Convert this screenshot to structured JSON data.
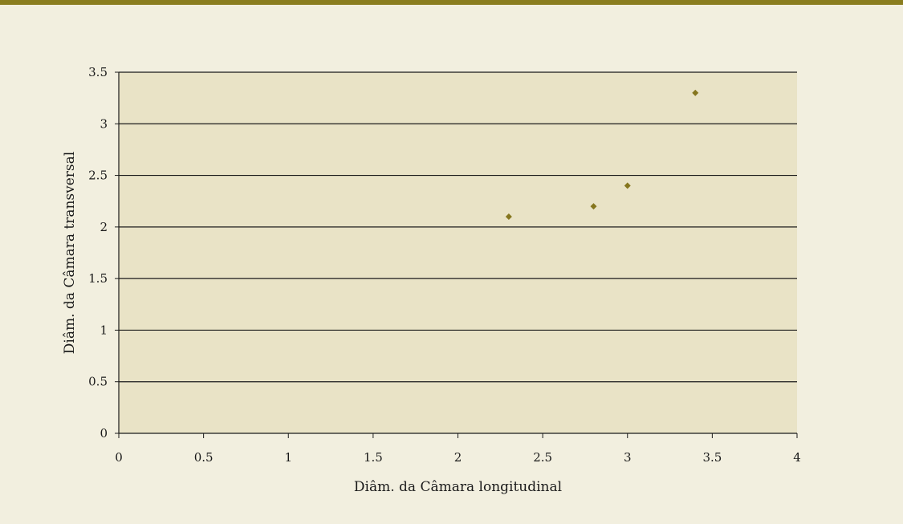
{
  "colors": {
    "outer_background": "#f2efdf",
    "top_rule": "#8a7d1e",
    "plot_background": "#e9e3c6",
    "gridline": "#1a1a1a",
    "marker": "#85761e"
  },
  "chart_data": {
    "type": "scatter",
    "xlabel": "Diâm. da Câmara longitudinal",
    "ylabel": "Diâm. da Câmara transversal",
    "xlim": [
      0,
      4
    ],
    "ylim": [
      0,
      3.5
    ],
    "x_ticks": [
      "0",
      "0.5",
      "1",
      "1.5",
      "2",
      "2.5",
      "3",
      "3.5",
      "4"
    ],
    "y_ticks": [
      "0",
      "0.5",
      "1",
      "1.5",
      "2",
      "2.5",
      "3",
      "3.5"
    ],
    "grid": "horizontal",
    "legend": "none",
    "marker": "diamond",
    "points": [
      {
        "x": 2.3,
        "y": 2.1
      },
      {
        "x": 2.8,
        "y": 2.2
      },
      {
        "x": 3.0,
        "y": 2.4
      },
      {
        "x": 3.4,
        "y": 3.3
      }
    ]
  }
}
